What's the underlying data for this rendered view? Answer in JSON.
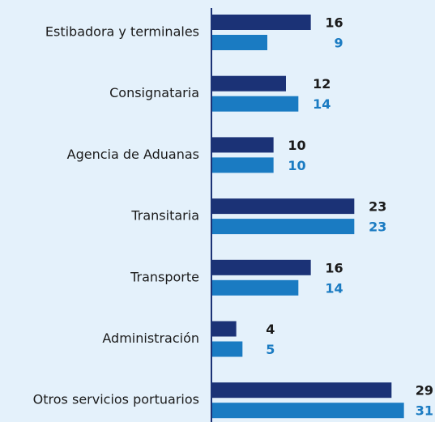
{
  "chart_data": {
    "type": "bar",
    "orientation": "horizontal",
    "categories": [
      "Estibadora y terminales",
      "Consignataria",
      "Agencia de Aduanas",
      "Transitaria",
      "Transporte",
      "Administración",
      "Otros servicios portuarios"
    ],
    "series": [
      {
        "color": "#1b3276",
        "values": [
          16,
          12,
          10,
          23,
          16,
          4,
          29
        ]
      },
      {
        "color": "#1a7bc2",
        "values": [
          9,
          14,
          10,
          23,
          14,
          5,
          31
        ]
      }
    ],
    "xlim": [
      0,
      36
    ]
  }
}
